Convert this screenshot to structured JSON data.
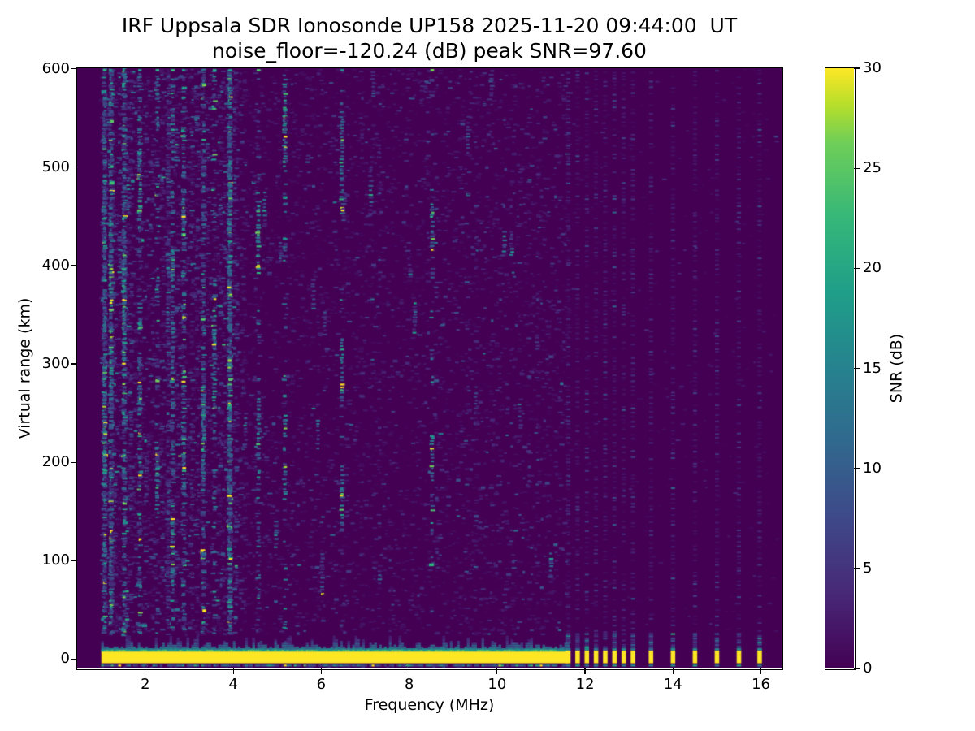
{
  "figure": {
    "kind": "matplotlib-ionogram"
  },
  "chart_data": {
    "type": "heatmap",
    "title": "IRF Uppsala SDR Ionosonde UP158 2025-11-20 09:44:00  UT",
    "subtitle": "noise_floor=-120.24 (dB) peak SNR=97.60",
    "station": "UP158",
    "datetime_ut": "2025-11-20 09:44:00",
    "noise_floor_db": -120.24,
    "peak_snr_db": 97.6,
    "xlabel": "Frequency (MHz)",
    "ylabel": "Virtual range (km)",
    "xlim": [
      0.45,
      16.47
    ],
    "ylim": [
      -9.5,
      600.5
    ],
    "x_ticks": [
      2,
      4,
      6,
      8,
      10,
      12,
      14,
      16
    ],
    "y_ticks": [
      0,
      100,
      200,
      300,
      400,
      500,
      600
    ],
    "grid": false,
    "legend": "none",
    "colorbar": {
      "label": "SNR (dB)",
      "min": 0,
      "max": 30,
      "ticks": [
        0,
        5,
        10,
        15,
        20,
        25,
        30
      ],
      "position": "right"
    },
    "colormap": "viridis",
    "colormap_stops": [
      [
        0,
        "#440154"
      ],
      [
        0.125,
        "#482878"
      ],
      [
        0.25,
        "#3e4989"
      ],
      [
        0.375,
        "#31688e"
      ],
      [
        0.5,
        "#26828e"
      ],
      [
        0.625,
        "#1f9e89"
      ],
      [
        0.75,
        "#35b779"
      ],
      [
        0.875,
        "#6ece58"
      ],
      [
        0.9375,
        "#b5de2b"
      ],
      [
        1,
        "#fde725"
      ]
    ],
    "sweep": {
      "start_mhz": 1.0,
      "continuous_until_mhz": 11.62,
      "fine_step_mhz": 0.05,
      "stepped_freqs_mhz": [
        11.62,
        11.83,
        12.04,
        12.25,
        12.46,
        12.67,
        12.88,
        13.09,
        13.5,
        14.0,
        14.5,
        15.0,
        15.5,
        15.97
      ]
    },
    "ground_pulse": {
      "range_km": [
        -4.2,
        8.8
      ],
      "snr_db": 30,
      "fringe_top_km": 24,
      "underline_km": -5.6
    },
    "noise_speckle": {
      "seed": 99,
      "low_band_until_mhz": 4.2,
      "low_band_boost": 3.0,
      "hot_columns_mhz": [
        1.05,
        1.2,
        1.5,
        1.85,
        2.25,
        2.6,
        2.85,
        3.3,
        3.55,
        3.9,
        4.55,
        5.15,
        6.45,
        8.5
      ],
      "max_speckle_range_km": 600
    }
  }
}
